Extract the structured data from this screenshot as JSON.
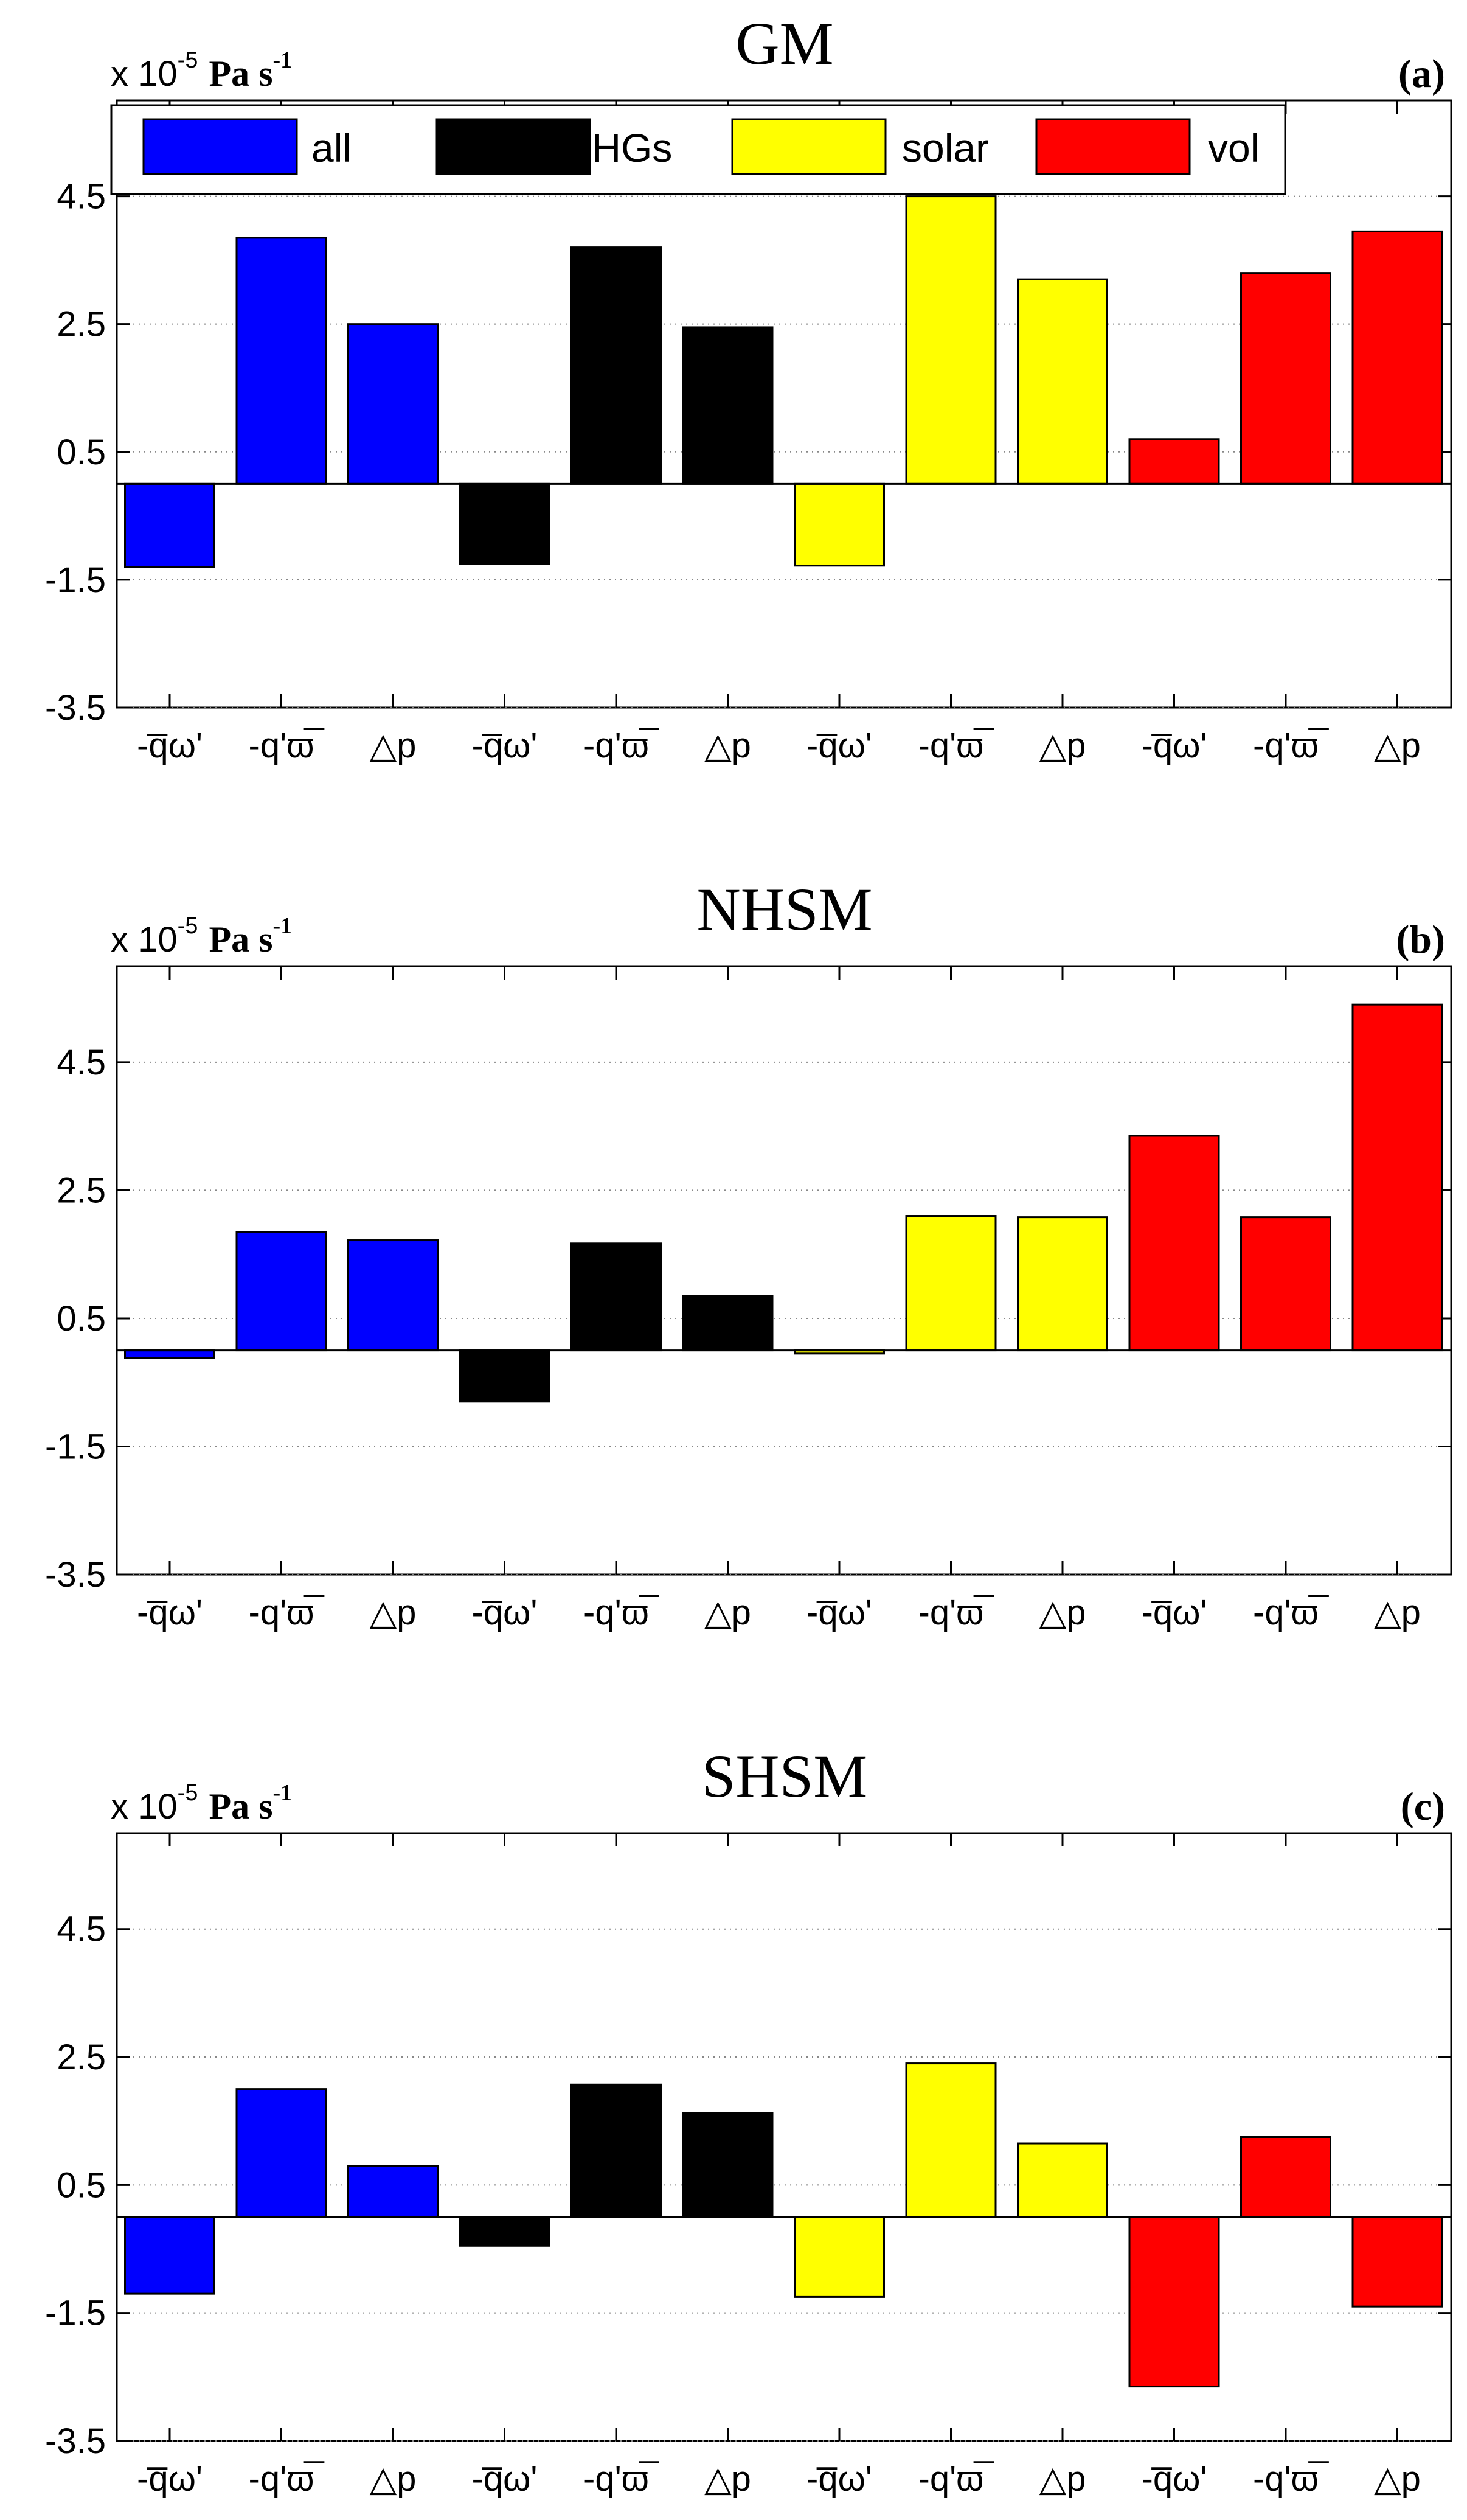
{
  "legend": {
    "entries": [
      {
        "name": "all",
        "color": "#0000ff"
      },
      {
        "name": "GHGs",
        "color": "#000000"
      },
      {
        "name": "solar",
        "color": "#ffff00"
      },
      {
        "name": "vol",
        "color": "#ff0000"
      }
    ],
    "placement": "top, inside panel (a)"
  },
  "units": {
    "prefix": "x 10",
    "exponent": "-5",
    "unit": "Pa s",
    "unit_exponent": "-1"
  },
  "chart_data": [
    {
      "type": "bar",
      "title": "GM",
      "panel_label": "(a)",
      "categories": [
        "-q̅ω'",
        "-q'ϖ̅",
        "△p",
        "-q̅ω'",
        "-q'ϖ̅",
        "△p",
        "-q̅ω'",
        "-q'ϖ̅",
        "△p",
        "-q̅ω'",
        "-q'ϖ̅",
        "△p"
      ],
      "group_per_bar": [
        "all",
        "all",
        "all",
        "GHGs",
        "GHGs",
        "GHGs",
        "solar",
        "solar",
        "solar",
        "vol",
        "vol",
        "vol"
      ],
      "values": [
        -1.3,
        3.85,
        2.5,
        -1.25,
        3.7,
        2.45,
        -1.28,
        4.5,
        3.2,
        0.7,
        3.3,
        3.95
      ],
      "ylim": [
        -3.5,
        6.0
      ],
      "yticks": [
        -3.5,
        -1.5,
        0.5,
        2.5,
        4.5
      ],
      "ytick_labels": [
        "-3.5",
        "-1.5",
        "0.5",
        "2.5",
        "4.5"
      ],
      "grid": "horizontal dotted at ticks",
      "legend": true
    },
    {
      "type": "bar",
      "title": "NHSM",
      "panel_label": "(b)",
      "categories": [
        "-q̅ω'",
        "-q'ϖ̅",
        "△p",
        "-q̅ω'",
        "-q'ϖ̅",
        "△p",
        "-q̅ω'",
        "-q'ϖ̅",
        "△p",
        "-q̅ω'",
        "-q'ϖ̅",
        "△p"
      ],
      "group_per_bar": [
        "all",
        "all",
        "all",
        "GHGs",
        "GHGs",
        "GHGs",
        "solar",
        "solar",
        "solar",
        "vol",
        "vol",
        "vol"
      ],
      "values": [
        -0.12,
        1.85,
        1.72,
        -0.8,
        1.67,
        0.85,
        -0.05,
        2.1,
        2.08,
        3.35,
        2.08,
        5.4
      ],
      "ylim": [
        -3.5,
        6.0
      ],
      "yticks": [
        -3.5,
        -1.5,
        0.5,
        2.5,
        4.5
      ],
      "ytick_labels": [
        "-3.5",
        "-1.5",
        "0.5",
        "2.5",
        "4.5"
      ],
      "grid": "horizontal dotted at ticks",
      "legend": false
    },
    {
      "type": "bar",
      "title": "SHSM",
      "panel_label": "(c)",
      "categories": [
        "-q̅ω'",
        "-q'ϖ̅",
        "△p",
        "-q̅ω'",
        "-q'ϖ̅",
        "△p",
        "-q̅ω'",
        "-q'ϖ̅",
        "△p",
        "-q̅ω'",
        "-q'ϖ̅",
        "△p"
      ],
      "group_per_bar": [
        "all",
        "all",
        "all",
        "GHGs",
        "GHGs",
        "GHGs",
        "solar",
        "solar",
        "solar",
        "vol",
        "vol",
        "vol"
      ],
      "values": [
        -1.2,
        2.0,
        0.8,
        -0.45,
        2.07,
        1.63,
        -1.25,
        2.4,
        1.15,
        -2.65,
        1.25,
        -1.4
      ],
      "ylim": [
        -3.5,
        6.0
      ],
      "yticks": [
        -3.5,
        -1.5,
        0.5,
        2.5,
        4.5
      ],
      "ytick_labels": [
        "-3.5",
        "-1.5",
        "0.5",
        "2.5",
        "4.5"
      ],
      "grid": "horizontal dotted at ticks",
      "legend": false
    }
  ]
}
